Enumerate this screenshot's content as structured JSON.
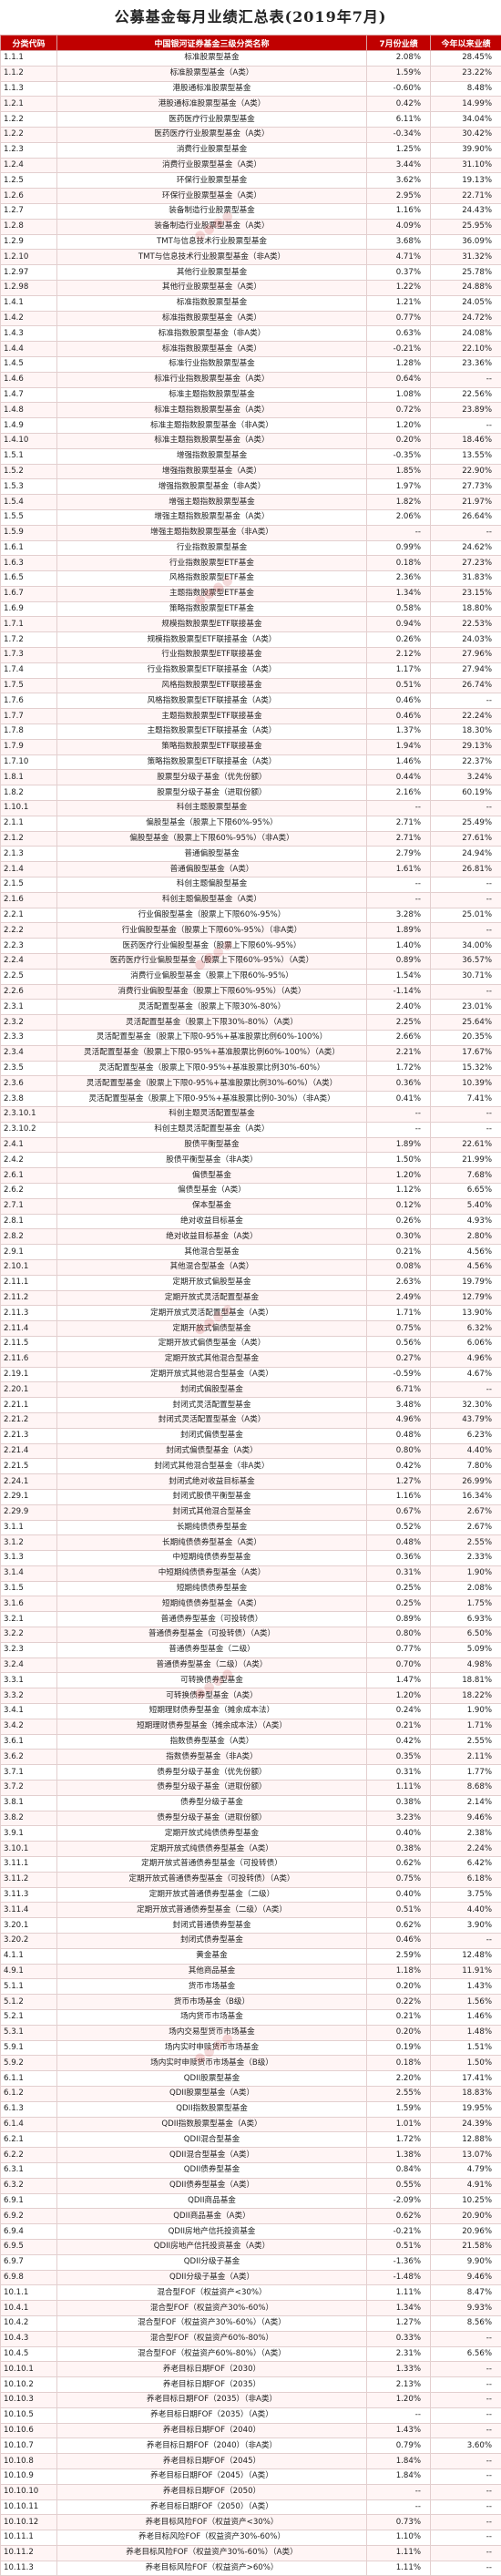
{
  "title": "公募基金每月业绩汇总表(2019年7月)",
  "headers": [
    "分类代码",
    "中国银河证券基金三级分类名称",
    "7月份业绩",
    "今年以来业绩"
  ],
  "rows": [
    [
      "1.1.1",
      "标准股票型基金",
      "2.08%",
      "28.45%"
    ],
    [
      "1.1.2",
      "标准股票型基金（A类）",
      "1.59%",
      "23.22%"
    ],
    [
      "1.1.3",
      "港股通标准股票型基金",
      "-0.60%",
      "8.48%"
    ],
    [
      "1.2.1",
      "港股通标准股票型基金（A类）",
      "0.42%",
      "14.99%"
    ],
    [
      "1.2.2",
      "医药医疗行业股票型基金",
      "6.11%",
      "34.04%"
    ],
    [
      "1.2.2",
      "医药医疗行业股票型基金（A类）",
      "-0.34%",
      "30.42%"
    ],
    [
      "1.2.3",
      "消费行业股票型基金",
      "1.25%",
      "39.90%"
    ],
    [
      "1.2.4",
      "消费行业股票型基金（A类）",
      "3.44%",
      "31.10%"
    ],
    [
      "1.2.5",
      "环保行业股票型基金",
      "3.62%",
      "19.13%"
    ],
    [
      "1.2.6",
      "环保行业股票型基金（A类）",
      "2.95%",
      "22.71%"
    ],
    [
      "1.2.7",
      "装备制造行业股票型基金",
      "1.16%",
      "24.43%"
    ],
    [
      "1.2.8",
      "装备制造行业股票型基金（A类）",
      "4.09%",
      "25.95%"
    ],
    [
      "1.2.9",
      "TMT与信息技术行业股票型基金",
      "3.68%",
      "36.09%"
    ],
    [
      "1.2.10",
      "TMT与信息技术行业股票型基金（非A类）",
      "4.71%",
      "31.32%"
    ],
    [
      "1.2.97",
      "其他行业股票型基金",
      "0.37%",
      "25.78%"
    ],
    [
      "1.2.98",
      "其他行业股票型基金（A类）",
      "1.22%",
      "24.88%"
    ],
    [
      "1.4.1",
      "标准指数股票型基金",
      "1.21%",
      "24.05%"
    ],
    [
      "1.4.2",
      "标准指数股票型基金（A类）",
      "0.77%",
      "24.72%"
    ],
    [
      "1.4.3",
      "标准指数股票型基金（非A类）",
      "0.63%",
      "24.08%"
    ],
    [
      "1.4.4",
      "标准指数股票型基金（A类）",
      "-0.21%",
      "22.10%"
    ],
    [
      "1.4.5",
      "标准行业指数股票型基金",
      "1.28%",
      "23.36%"
    ],
    [
      "1.4.6",
      "标准行业指数股票型基金（A类）",
      "0.64%",
      "--"
    ],
    [
      "1.4.7",
      "标准主题指数股票型基金",
      "1.08%",
      "22.56%"
    ],
    [
      "1.4.8",
      "标准主题指数股票型基金（A类）",
      "0.72%",
      "23.89%"
    ],
    [
      "1.4.9",
      "标准主题指数股票型基金（非A类）",
      "1.20%",
      "--"
    ],
    [
      "1.4.10",
      "标准主题指数股票型基金（A类）",
      "0.20%",
      "18.46%"
    ],
    [
      "1.5.1",
      "增强指数股票型基金",
      "-0.35%",
      "13.55%"
    ],
    [
      "1.5.2",
      "增强指数股票型基金（A类）",
      "1.85%",
      "22.90%"
    ],
    [
      "1.5.3",
      "增强指数股票型基金（非A类）",
      "1.97%",
      "27.73%"
    ],
    [
      "1.5.4",
      "增强主题指数股票型基金",
      "1.82%",
      "21.97%"
    ],
    [
      "1.5.5",
      "增强主题指数股票型基金（A类）",
      "2.06%",
      "26.64%"
    ],
    [
      "1.5.9",
      "增强主题指数股票型基金（非A类）",
      "--",
      "--"
    ],
    [
      "1.6.1",
      "行业指数股票型基金",
      "0.99%",
      "24.62%"
    ],
    [
      "1.6.3",
      "行业指数股票型ETF基金",
      "0.18%",
      "27.23%"
    ],
    [
      "1.6.5",
      "风格指数股票型ETF基金",
      "2.36%",
      "31.83%"
    ],
    [
      "1.6.7",
      "主题指数股票型ETF基金",
      "1.34%",
      "23.15%"
    ],
    [
      "1.6.9",
      "策略指数股票型ETF基金",
      "0.58%",
      "18.80%"
    ],
    [
      "1.7.1",
      "规模指数股票型ETF联接基金",
      "0.94%",
      "22.53%"
    ],
    [
      "1.7.2",
      "规模指数股票型ETF联接基金（A类）",
      "0.26%",
      "24.03%"
    ],
    [
      "1.7.3",
      "行业指数股票型ETF联接基金",
      "2.12%",
      "27.96%"
    ],
    [
      "1.7.4",
      "行业指数股票型ETF联接基金（A类）",
      "1.17%",
      "27.94%"
    ],
    [
      "1.7.5",
      "风格指数股票型ETF联接基金",
      "0.51%",
      "26.74%"
    ],
    [
      "1.7.6",
      "风格指数股票型ETF联接基金（A类）",
      "0.46%",
      "--"
    ],
    [
      "1.7.7",
      "主题指数股票型ETF联接基金",
      "0.46%",
      "22.24%"
    ],
    [
      "1.7.8",
      "主题指数股票型ETF联接基金（A类）",
      "1.37%",
      "18.30%"
    ],
    [
      "1.7.9",
      "策略指数股票型ETF联接基金",
      "1.94%",
      "29.13%"
    ],
    [
      "1.7.10",
      "策略指数股票型ETF联接基金（A类）",
      "1.46%",
      "22.37%"
    ],
    [
      "1.8.1",
      "股票型分级子基金（优先份额）",
      "0.44%",
      "3.24%"
    ],
    [
      "1.8.2",
      "股票型分级子基金（进取份额）",
      "2.16%",
      "60.19%"
    ],
    [
      "1.10.1",
      "科创主题股票型基金",
      "--",
      "--"
    ],
    [
      "2.1.1",
      "偏股型基金（股票上下限60%-95%）",
      "2.71%",
      "25.49%"
    ],
    [
      "2.1.2",
      "偏股型基金（股票上下限60%-95%）（非A类）",
      "2.71%",
      "27.61%"
    ],
    [
      "2.1.3",
      "普通偏股型基金",
      "2.79%",
      "24.94%"
    ],
    [
      "2.1.4",
      "普通偏股型基金（A类）",
      "1.61%",
      "26.81%"
    ],
    [
      "2.1.5",
      "科创主题偏股型基金",
      "--",
      "--"
    ],
    [
      "2.1.6",
      "科创主题偏股型基金（A类）",
      "--",
      "--"
    ],
    [
      "2.2.1",
      "行业偏股型基金（股票上下限60%-95%）",
      "3.28%",
      "25.01%"
    ],
    [
      "2.2.2",
      "行业偏股型基金（股票上下限60%-95%）（非A类）",
      "1.89%",
      "--"
    ],
    [
      "2.2.3",
      "医药医疗行业偏股型基金（股票上下限60%-95%）",
      "1.40%",
      "34.00%"
    ],
    [
      "2.2.4",
      "医药医疗行业偏股型基金（股票上下限60%-95%）（A类）",
      "0.89%",
      "36.57%"
    ],
    [
      "2.2.5",
      "消费行业偏股型基金（股票上下限60%-95%）",
      "1.54%",
      "30.71%"
    ],
    [
      "2.2.6",
      "消费行业偏股型基金（股票上下限60%-95%）（A类）",
      "-1.14%",
      "--"
    ],
    [
      "2.3.1",
      "灵活配置型基金（股票上下限30%-80%）",
      "2.40%",
      "23.01%"
    ],
    [
      "2.3.2",
      "灵活配置型基金（股票上下限30%-80%）（A类）",
      "2.25%",
      "25.64%"
    ],
    [
      "2.3.3",
      "灵活配置型基金（股票上下限0-95%+基准股票比例60%-100%）",
      "2.66%",
      "20.35%"
    ],
    [
      "2.3.4",
      "灵活配置型基金（股票上下限0-95%+基准股票比例60%-100%）（A类）",
      "2.21%",
      "17.67%"
    ],
    [
      "2.3.5",
      "灵活配置型基金（股票上下限0-95%+基准股票比例30%-60%）",
      "1.72%",
      "15.32%"
    ],
    [
      "2.3.6",
      "灵活配置型基金（股票上下限0-95%+基准股票比例30%-60%）（A类）",
      "0.36%",
      "10.39%"
    ],
    [
      "2.3.8",
      "灵活配置型基金（股票上下限0-95%+基准股票比例0-30%）（非A类）",
      "0.41%",
      "7.41%"
    ],
    [
      "2.3.10.1",
      "科创主题灵活配置型基金",
      "--",
      "--"
    ],
    [
      "2.3.10.2",
      "科创主题灵活配置型基金（A类）",
      "--",
      "--"
    ],
    [
      "2.4.1",
      "股债平衡型基金",
      "1.89%",
      "22.61%"
    ],
    [
      "2.4.2",
      "股债平衡型基金（非A类）",
      "1.50%",
      "21.99%"
    ],
    [
      "2.6.1",
      "偏债型基金",
      "1.20%",
      "7.68%"
    ],
    [
      "2.6.2",
      "偏债型基金（A类）",
      "1.12%",
      "6.65%"
    ],
    [
      "2.7.1",
      "保本型基金",
      "0.12%",
      "5.40%"
    ],
    [
      "2.8.1",
      "绝对收益目标基金",
      "0.26%",
      "4.93%"
    ],
    [
      "2.8.2",
      "绝对收益目标基金（A类）",
      "0.30%",
      "2.80%"
    ],
    [
      "2.9.1",
      "其他混合型基金",
      "0.21%",
      "4.56%"
    ],
    [
      "2.10.1",
      "其他混合型基金（A类）",
      "0.08%",
      "4.56%"
    ],
    [
      "2.11.1",
      "定期开放式偏股型基金",
      "2.63%",
      "19.79%"
    ],
    [
      "2.11.2",
      "定期开放式灵活配置型基金",
      "2.49%",
      "12.79%"
    ],
    [
      "2.11.3",
      "定期开放式灵活配置型基金（A类）",
      "1.71%",
      "13.90%"
    ],
    [
      "2.11.4",
      "定期开放式偏债型基金",
      "0.75%",
      "6.32%"
    ],
    [
      "2.11.5",
      "定期开放式偏债型基金（A类）",
      "0.56%",
      "6.06%"
    ],
    [
      "2.11.6",
      "定期开放式其他混合型基金",
      "0.27%",
      "4.96%"
    ],
    [
      "2.19.1",
      "定期开放式其他混合型基金（A类）",
      "-0.59%",
      "4.67%"
    ],
    [
      "2.20.1",
      "封闭式偏股型基金",
      "6.71%",
      "--"
    ],
    [
      "2.21.1",
      "封闭式灵活配置型基金",
      "3.48%",
      "32.30%"
    ],
    [
      "2.21.2",
      "封闭式灵活配置型基金（A类）",
      "4.96%",
      "43.79%"
    ],
    [
      "2.21.3",
      "封闭式偏债型基金",
      "0.48%",
      "6.23%"
    ],
    [
      "2.21.4",
      "封闭式偏债型基金（A类）",
      "0.80%",
      "4.40%"
    ],
    [
      "2.21.5",
      "封闭式其他混合型基金（非A类）",
      "0.42%",
      "7.80%"
    ],
    [
      "2.24.1",
      "封闭式绝对收益目标基金",
      "1.27%",
      "26.99%"
    ],
    [
      "2.29.1",
      "封闭式股债平衡型基金",
      "1.16%",
      "16.34%"
    ],
    [
      "2.29.9",
      "封闭式其他混合型基金",
      "0.67%",
      "2.67%"
    ],
    [
      "3.1.1",
      "长期纯债债券型基金",
      "0.52%",
      "2.67%"
    ],
    [
      "3.1.2",
      "长期纯债债券型基金（A类）",
      "0.48%",
      "2.55%"
    ],
    [
      "3.1.3",
      "中短期纯债债券型基金",
      "0.36%",
      "2.33%"
    ],
    [
      "3.1.4",
      "中短期纯债债券型基金（A类）",
      "0.31%",
      "1.90%"
    ],
    [
      "3.1.5",
      "短期纯债债券型基金",
      "0.25%",
      "2.08%"
    ],
    [
      "3.1.6",
      "短期纯债债券型基金（A类）",
      "0.25%",
      "1.75%"
    ],
    [
      "3.2.1",
      "普通债券型基金（可投转债）",
      "0.89%",
      "6.93%"
    ],
    [
      "3.2.2",
      "普通债券型基金（可投转债）（A类）",
      "0.80%",
      "6.50%"
    ],
    [
      "3.2.3",
      "普通债券型基金（二级）",
      "0.77%",
      "5.09%"
    ],
    [
      "3.2.4",
      "普通债券型基金（二级）（A类）",
      "0.70%",
      "4.98%"
    ],
    [
      "3.3.1",
      "可转换债券型基金",
      "1.47%",
      "18.81%"
    ],
    [
      "3.3.2",
      "可转换债券型基金（A类）",
      "1.20%",
      "18.22%"
    ],
    [
      "3.4.1",
      "短期理财债券型基金（摊余成本法）",
      "0.24%",
      "1.90%"
    ],
    [
      "3.4.2",
      "短期理财债券型基金（摊余成本法）（A类）",
      "0.21%",
      "1.71%"
    ],
    [
      "3.6.1",
      "指数债券型基金（A类）",
      "0.42%",
      "2.55%"
    ],
    [
      "3.6.2",
      "指数债券型基金（非A类）",
      "0.35%",
      "2.11%"
    ],
    [
      "3.7.1",
      "债券型分级子基金（优先份额）",
      "0.31%",
      "1.77%"
    ],
    [
      "3.7.2",
      "债券型分级子基金（进取份额）",
      "1.11%",
      "8.68%"
    ],
    [
      "3.8.1",
      "债券型分级子基金",
      "0.38%",
      "2.14%"
    ],
    [
      "3.8.2",
      "债券型分级子基金（进取份额）",
      "3.23%",
      "9.46%"
    ],
    [
      "3.9.1",
      "定期开放式纯债债券型基金",
      "0.40%",
      "2.38%"
    ],
    [
      "3.10.1",
      "定期开放式纯债债券型基金（A类）",
      "0.38%",
      "2.24%"
    ],
    [
      "3.11.1",
      "定期开放式普通债券型基金（可投转债）",
      "0.62%",
      "6.42%"
    ],
    [
      "3.11.2",
      "定期开放式普通债券型基金（可投转债）（A类）",
      "0.75%",
      "6.18%"
    ],
    [
      "3.11.3",
      "定期开放式普通债券型基金（二级）",
      "0.40%",
      "3.75%"
    ],
    [
      "3.11.4",
      "定期开放式普通债券型基金（二级）（A类）",
      "0.51%",
      "4.40%"
    ],
    [
      "3.20.1",
      "封闭式普通债券型基金",
      "0.62%",
      "3.90%"
    ],
    [
      "3.20.2",
      "封闭式债券型基金",
      "0.46%",
      "--"
    ],
    [
      "4.1.1",
      "黄金基金",
      "2.59%",
      "12.48%"
    ],
    [
      "4.9.1",
      "其他商品基金",
      "1.18%",
      "11.91%"
    ],
    [
      "5.1.1",
      "货币市场基金",
      "0.20%",
      "1.43%"
    ],
    [
      "5.1.2",
      "货币市场基金（B级）",
      "0.22%",
      "1.56%"
    ],
    [
      "5.2.1",
      "场内货币市场基金",
      "0.21%",
      "1.46%"
    ],
    [
      "5.3.1",
      "场内交易型货币市场基金",
      "0.20%",
      "1.48%"
    ],
    [
      "5.9.1",
      "场内实时申赎货币市场基金",
      "0.19%",
      "1.51%"
    ],
    [
      "5.9.2",
      "场内实时申赎货币市场基金（B级）",
      "0.18%",
      "1.50%"
    ],
    [
      "6.1.1",
      "QDII股票型基金",
      "2.20%",
      "17.41%"
    ],
    [
      "6.1.2",
      "QDII股票型基金（A类）",
      "2.55%",
      "18.83%"
    ],
    [
      "6.1.3",
      "QDII指数股票型基金",
      "1.59%",
      "19.95%"
    ],
    [
      "6.1.4",
      "QDII指数股票型基金（A类）",
      "1.01%",
      "24.39%"
    ],
    [
      "6.2.1",
      "QDII混合型基金",
      "1.72%",
      "12.88%"
    ],
    [
      "6.2.2",
      "QDII混合型基金（A类）",
      "1.38%",
      "13.07%"
    ],
    [
      "6.3.1",
      "QDII债券型基金",
      "0.84%",
      "4.79%"
    ],
    [
      "6.3.2",
      "QDII债券型基金（A类）",
      "0.55%",
      "4.91%"
    ],
    [
      "6.9.1",
      "QDII商品基金",
      "-2.09%",
      "10.25%"
    ],
    [
      "6.9.2",
      "QDII商品基金（A类）",
      "0.62%",
      "20.90%"
    ],
    [
      "6.9.4",
      "QDII房地产信托投资基金",
      "-0.21%",
      "20.96%"
    ],
    [
      "6.9.5",
      "QDII房地产信托投资基金（A类）",
      "0.51%",
      "21.58%"
    ],
    [
      "6.9.7",
      "QDII分级子基金",
      "-1.36%",
      "9.90%"
    ],
    [
      "6.9.8",
      "QDII分级子基金（A类）",
      "-1.48%",
      "9.46%"
    ],
    [
      "10.1.1",
      "混合型FOF（权益资产<30%）",
      "1.11%",
      "8.47%"
    ],
    [
      "10.4.1",
      "混合型FOF（权益资产30%-60%）",
      "1.34%",
      "9.93%"
    ],
    [
      "10.4.2",
      "混合型FOF（权益资产30%-60%）（A类）",
      "1.27%",
      "8.56%"
    ],
    [
      "10.4.3",
      "混合型FOF（权益资产60%-80%）",
      "0.33%",
      "--"
    ],
    [
      "10.4.5",
      "混合型FOF（权益资产60%-80%）（A类）",
      "2.31%",
      "6.56%"
    ],
    [
      "10.10.1",
      "养老目标日期FOF（2030）",
      "1.33%",
      "--"
    ],
    [
      "10.10.2",
      "养老目标日期FOF（2035）",
      "2.13%",
      "--"
    ],
    [
      "10.10.3",
      "养老目标日期FOF（2035）（非A类）",
      "1.20%",
      "--"
    ],
    [
      "10.10.5",
      "养老目标日期FOF（2035）（A类）",
      "--",
      "--"
    ],
    [
      "10.10.6",
      "养老目标日期FOF（2040）",
      "1.43%",
      "--"
    ],
    [
      "10.10.7",
      "养老目标日期FOF（2040）（非A类）",
      "0.79%",
      "3.60%"
    ],
    [
      "10.10.8",
      "养老目标日期FOF（2045）",
      "1.84%",
      "--"
    ],
    [
      "10.10.9",
      "养老目标日期FOF（2045）（A类）",
      "1.84%",
      "--"
    ],
    [
      "10.10.10",
      "养老目标日期FOF（2050）",
      "--",
      "--"
    ],
    [
      "10.10.11",
      "养老目标日期FOF（2050）（A类）",
      "--",
      "--"
    ],
    [
      "10.10.12",
      "养老目标风险FOF（权益资产<30%）",
      "0.73%",
      "--"
    ],
    [
      "10.11.1",
      "养老目标风险FOF（权益资产30%-60%）",
      "1.10%",
      "--"
    ],
    [
      "10.11.2",
      "养老目标风险FOF（权益资产30%-60%）（A类）",
      "1.11%",
      "--"
    ],
    [
      "10.11.3",
      "养老目标风险FOF（权益资产>60%）",
      "1.11%",
      "--"
    ]
  ]
}
